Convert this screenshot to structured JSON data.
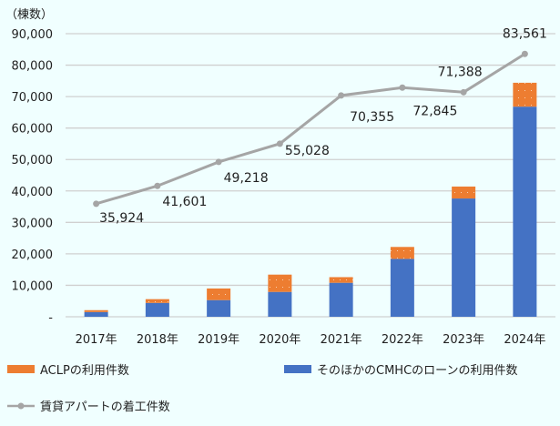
{
  "chart_data": {
    "type": "bar",
    "unit_label": "（棟数）",
    "categories": [
      "2017年",
      "2018年",
      "2019年",
      "2020年",
      "2021年",
      "2022年",
      "2023年",
      "2024年"
    ],
    "ylim": [
      0,
      90000
    ],
    "yticks": [
      "-",
      "10,000",
      "20,000",
      "30,000",
      "40,000",
      "50,000",
      "60,000",
      "70,000",
      "80,000",
      "90,000"
    ],
    "grid": true,
    "legend_position": "bottom",
    "series": [
      {
        "name": "そのほかのCMHCのローンの利用件数",
        "kind": "stacked-bar",
        "color": "#4472c4",
        "values": [
          1500,
          4400,
          5300,
          7900,
          10800,
          18400,
          37600,
          66800
        ]
      },
      {
        "name": "ACLPの利用件数",
        "kind": "stacked-bar",
        "color": "#ed7d31",
        "pattern": "dotted",
        "values": [
          600,
          1200,
          3700,
          5500,
          1800,
          3800,
          3800,
          7600
        ]
      },
      {
        "name": "賃貸アパートの着工件数",
        "kind": "line",
        "color": "#a5a5a5",
        "values": [
          35924,
          41601,
          49218,
          55028,
          70355,
          72845,
          71388,
          83561
        ],
        "labels": [
          "35,924",
          "41,601",
          "49,218",
          "55,028",
          "70,355",
          "72,845",
          "71,388",
          "83,561"
        ]
      }
    ]
  }
}
